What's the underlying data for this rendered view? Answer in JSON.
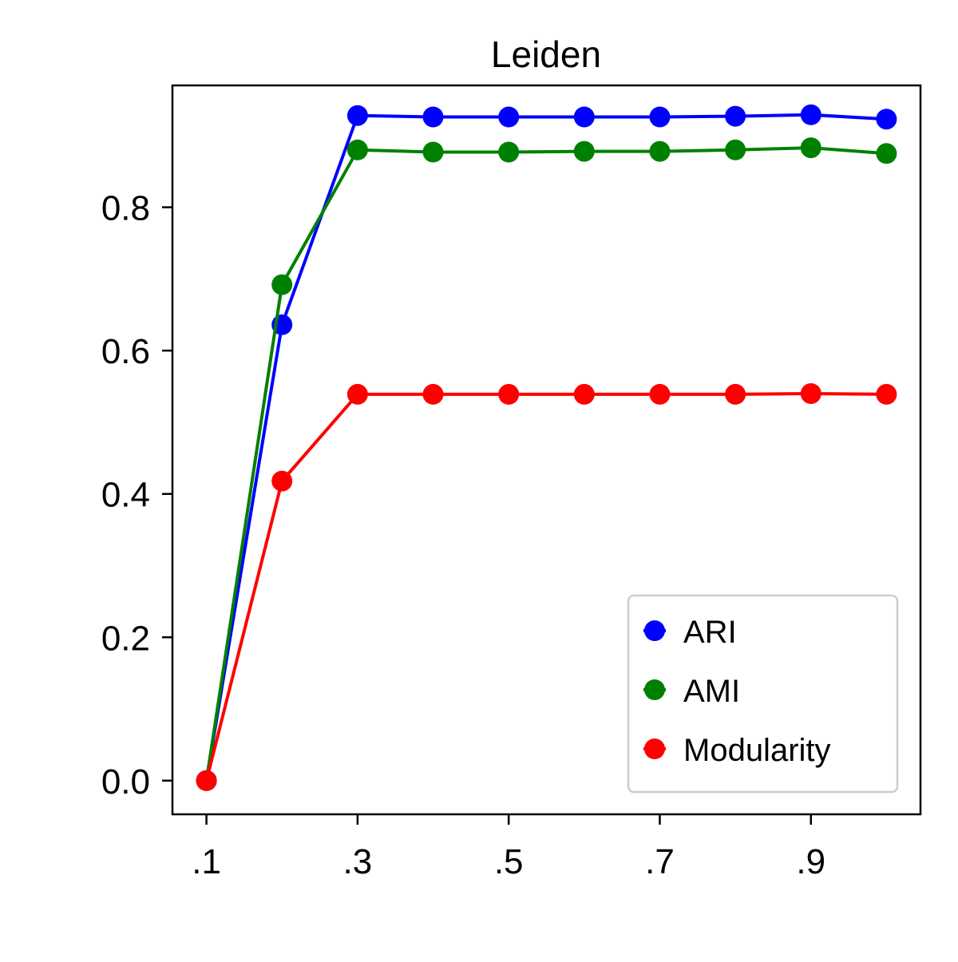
{
  "colors": {
    "ARI": "#0000ff",
    "AMI": "#008000",
    "Modularity": "#ff0000",
    "axes": "#000000",
    "legend_border": "#cccccc"
  },
  "chart_data": {
    "type": "line",
    "title": "Leiden",
    "xlabel": "",
    "ylabel": "",
    "x": [
      0.1,
      0.2,
      0.3,
      0.4,
      0.5,
      0.6,
      0.7,
      0.8,
      0.9,
      1.0
    ],
    "x_ticks": [
      0.1,
      0.3,
      0.5,
      0.7,
      0.9
    ],
    "x_tick_labels": [
      ".1",
      ".3",
      ".5",
      ".7",
      ".9"
    ],
    "y_ticks": [
      0.0,
      0.2,
      0.4,
      0.6,
      0.8
    ],
    "y_tick_labels": [
      "0.0",
      "0.2",
      "0.4",
      "0.6",
      "0.8"
    ],
    "xlim": [
      0.055,
      1.045
    ],
    "ylim": [
      -0.047,
      0.97
    ],
    "grid": false,
    "legend_position": "lower-right",
    "marker": "circle",
    "series": [
      {
        "name": "ARI",
        "values": [
          0.0,
          0.636,
          0.928,
          0.926,
          0.926,
          0.926,
          0.926,
          0.927,
          0.929,
          0.923
        ]
      },
      {
        "name": "AMI",
        "values": [
          0.0,
          0.692,
          0.88,
          0.877,
          0.877,
          0.878,
          0.878,
          0.88,
          0.883,
          0.875
        ]
      },
      {
        "name": "Modularity",
        "values": [
          0.0,
          0.418,
          0.539,
          0.539,
          0.539,
          0.539,
          0.539,
          0.539,
          0.54,
          0.539
        ]
      }
    ]
  }
}
